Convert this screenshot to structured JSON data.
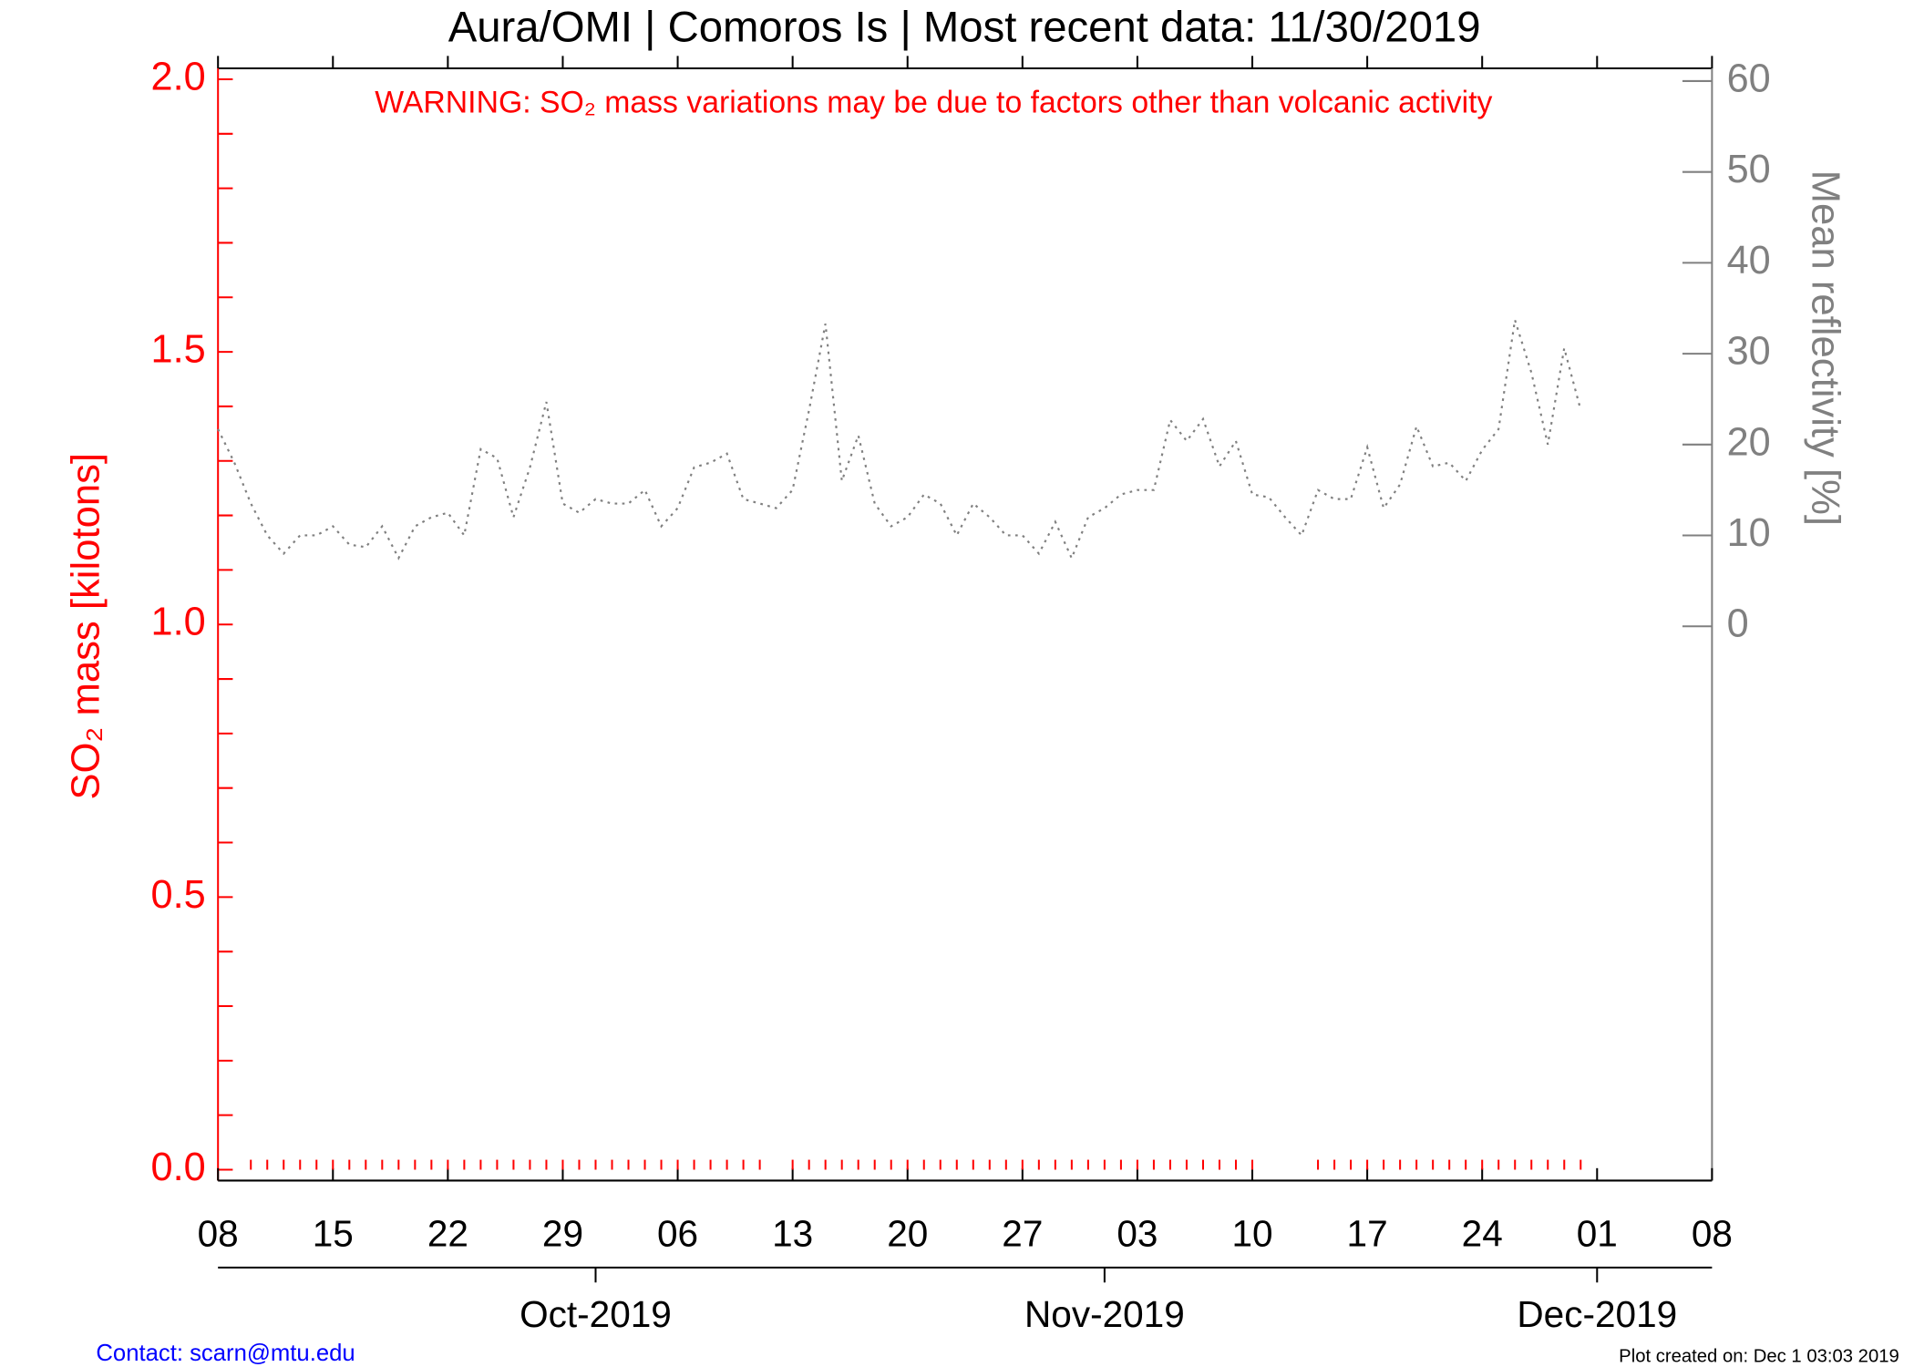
{
  "chart_data": {
    "type": "line",
    "title": "Aura/OMI | Comoros Is | Most recent data: 11/30/2019",
    "annotation": "WARNING: SO₂ mass variations may be due to factors other than volcanic activity",
    "ylabel": "SO₂ mass [kilotons]",
    "y2label": "Mean reflectivity [%]",
    "footer_left": "Contact: scarn@mtu.edu",
    "footer_right": "Plot created on: Dec  1 03:03 2019",
    "xlim": [
      "2019-09-08",
      "2019-12-08"
    ],
    "xticks": [
      {
        "value": "2019-09-08",
        "label": "08"
      },
      {
        "value": "2019-09-15",
        "label": "15"
      },
      {
        "value": "2019-09-22",
        "label": "22"
      },
      {
        "value": "2019-09-29",
        "label": "29"
      },
      {
        "value": "2019-10-06",
        "label": "06"
      },
      {
        "value": "2019-10-13",
        "label": "13"
      },
      {
        "value": "2019-10-20",
        "label": "20"
      },
      {
        "value": "2019-10-27",
        "label": "27"
      },
      {
        "value": "2019-11-03",
        "label": "03"
      },
      {
        "value": "2019-11-10",
        "label": "10"
      },
      {
        "value": "2019-11-17",
        "label": "17"
      },
      {
        "value": "2019-11-24",
        "label": "24"
      },
      {
        "value": "2019-12-01",
        "label": "01"
      },
      {
        "value": "2019-12-08",
        "label": "08"
      }
    ],
    "month_ticks": [
      {
        "value": "2019-10-01",
        "label": "Oct-2019"
      },
      {
        "value": "2019-11-01",
        "label": "Nov-2019"
      },
      {
        "value": "2019-12-01",
        "label": "Dec-2019"
      }
    ],
    "ylim": [
      -0.02,
      2.02
    ],
    "yticks": [
      {
        "value": 0,
        "label": "0.0"
      },
      {
        "value": 0.5,
        "label": "0.5"
      },
      {
        "value": 1,
        "label": "1.0"
      },
      {
        "value": 1.5,
        "label": "1.5"
      },
      {
        "value": 2,
        "label": "2.0"
      }
    ],
    "yminorticks": [
      0.1,
      0.2,
      0.3,
      0.4,
      0.6,
      0.7,
      0.8,
      0.9,
      1.1,
      1.2,
      1.3,
      1.4,
      1.6,
      1.7,
      1.8,
      1.9
    ],
    "y2lim": [
      -61,
      61.4
    ],
    "y2ticks": [
      0,
      10,
      20,
      30,
      40,
      50,
      60
    ],
    "y_color": "#ff0000",
    "y2_color": "#808080",
    "x": [
      "2019-09-08",
      "2019-09-09",
      "2019-09-10",
      "2019-09-11",
      "2019-09-12",
      "2019-09-13",
      "2019-09-14",
      "2019-09-15",
      "2019-09-16",
      "2019-09-17",
      "2019-09-18",
      "2019-09-19",
      "2019-09-20",
      "2019-09-21",
      "2019-09-22",
      "2019-09-23",
      "2019-09-24",
      "2019-09-25",
      "2019-09-26",
      "2019-09-27",
      "2019-09-28",
      "2019-09-29",
      "2019-09-30",
      "2019-10-01",
      "2019-10-02",
      "2019-10-03",
      "2019-10-04",
      "2019-10-05",
      "2019-10-06",
      "2019-10-07",
      "2019-10-08",
      "2019-10-09",
      "2019-10-10",
      "2019-10-11",
      "2019-10-12",
      "2019-10-13",
      "2019-10-14",
      "2019-10-15",
      "2019-10-16",
      "2019-10-17",
      "2019-10-18",
      "2019-10-19",
      "2019-10-20",
      "2019-10-21",
      "2019-10-22",
      "2019-10-23",
      "2019-10-24",
      "2019-10-25",
      "2019-10-26",
      "2019-10-27",
      "2019-10-28",
      "2019-10-29",
      "2019-10-30",
      "2019-10-31",
      "2019-11-01",
      "2019-11-02",
      "2019-11-03",
      "2019-11-04",
      "2019-11-05",
      "2019-11-06",
      "2019-11-07",
      "2019-11-08",
      "2019-11-09",
      "2019-11-10",
      "2019-11-11",
      "2019-11-12",
      "2019-11-13",
      "2019-11-14",
      "2019-11-15",
      "2019-11-16",
      "2019-11-17",
      "2019-11-18",
      "2019-11-19",
      "2019-11-20",
      "2019-11-21",
      "2019-11-22",
      "2019-11-23",
      "2019-11-24",
      "2019-11-25",
      "2019-11-26",
      "2019-11-27",
      "2019-11-28",
      "2019-11-29",
      "2019-11-30"
    ],
    "series": [
      {
        "color": "#ff0000",
        "style": "ticks",
        "values": [
          null,
          null,
          0,
          0,
          0,
          0,
          0,
          0,
          0,
          0,
          0,
          0,
          0,
          0,
          0,
          0,
          0,
          0,
          0,
          0,
          0,
          0,
          0,
          0,
          0,
          0,
          0,
          0,
          0,
          0,
          0,
          0,
          0,
          0,
          null,
          0,
          0,
          0,
          0,
          0,
          0,
          0,
          0,
          0,
          0,
          0,
          0,
          0,
          0,
          0,
          0,
          0,
          0,
          0,
          0,
          0,
          0,
          0,
          0,
          0,
          0,
          0,
          0,
          0,
          null,
          null,
          null,
          0,
          0,
          0,
          0,
          0,
          0,
          0,
          0,
          0,
          0,
          0,
          0,
          0,
          0,
          0,
          0,
          0
        ]
      },
      {
        "color": "#808080",
        "style": "dotted",
        "axis": "y2",
        "values": [
          21.7,
          18,
          13.5,
          10,
          8,
          10,
          10,
          11,
          9,
          8.7,
          11,
          7.5,
          11,
          12,
          12.5,
          10,
          19.5,
          18.5,
          12,
          17.5,
          24.7,
          13.5,
          12.5,
          14,
          13.5,
          13.5,
          15,
          11,
          13,
          17.5,
          18,
          19,
          14,
          13.5,
          13,
          15,
          23.8,
          33.3,
          16,
          21,
          13.5,
          11,
          12,
          14.5,
          13.5,
          10,
          13.5,
          12,
          10,
          10,
          8,
          11.5,
          7.5,
          12,
          13,
          14.5,
          15,
          15,
          22.7,
          20.4,
          22.8,
          17.6,
          20.4,
          14.5,
          14.2,
          12,
          10,
          15,
          14,
          14,
          19.7,
          13,
          15.6,
          22,
          17.6,
          18,
          16,
          19.4,
          21.7,
          33.7,
          27.9,
          20,
          30.6,
          23.8
        ]
      }
    ]
  }
}
